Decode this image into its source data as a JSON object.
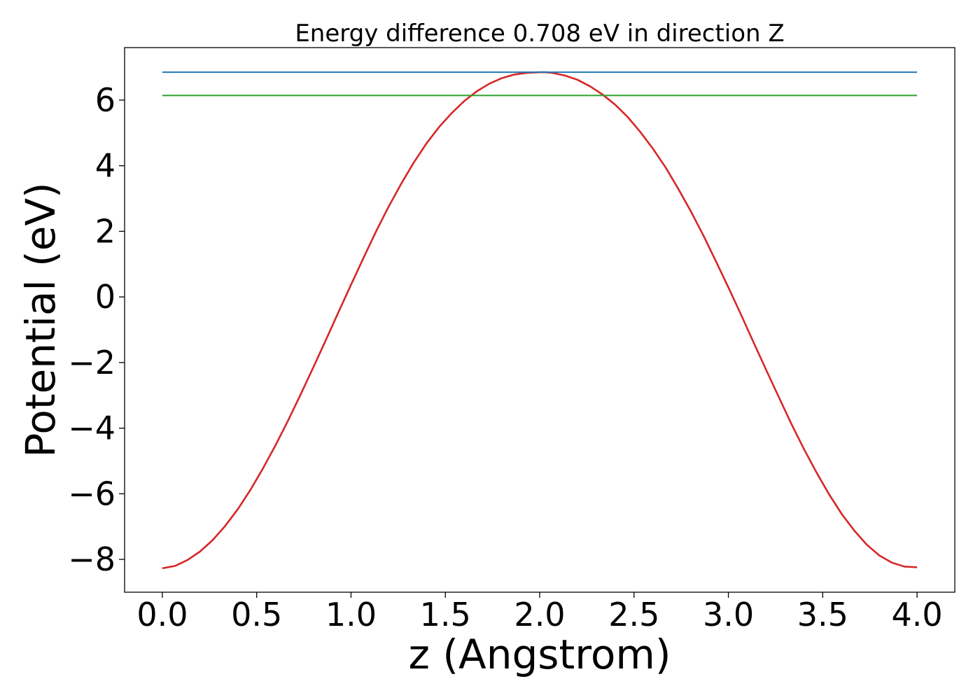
{
  "chart_data": {
    "type": "line",
    "title": "Energy difference 0.708 eV in direction Z",
    "xlabel": "z (Angstrom)",
    "ylabel": "Potential (eV)",
    "xlim": [
      -0.2,
      4.2
    ],
    "ylim": [
      -9.0,
      7.6
    ],
    "xticks": [
      0.0,
      0.5,
      1.0,
      1.5,
      2.0,
      2.5,
      3.0,
      3.5,
      4.0
    ],
    "xtick_labels": [
      "0.0",
      "0.5",
      "1.0",
      "1.5",
      "2.0",
      "2.5",
      "3.0",
      "3.5",
      "4.0"
    ],
    "yticks": [
      -8,
      -6,
      -4,
      -2,
      0,
      2,
      4,
      6
    ],
    "ytick_labels": [
      "−8",
      "−6",
      "−4",
      "−2",
      "0",
      "2",
      "4",
      "6"
    ],
    "grid": false,
    "legend": "none",
    "series": [
      {
        "color": "#d62728",
        "x": [
          0.0,
          0.067,
          0.133,
          0.2,
          0.267,
          0.333,
          0.4,
          0.467,
          0.533,
          0.6,
          0.667,
          0.733,
          0.8,
          0.867,
          0.933,
          1.0,
          1.067,
          1.133,
          1.2,
          1.267,
          1.333,
          1.4,
          1.467,
          1.533,
          1.6,
          1.667,
          1.733,
          1.8,
          1.867,
          1.933,
          2.0,
          2.033,
          2.067,
          2.133,
          2.2,
          2.267,
          2.333,
          2.4,
          2.467,
          2.533,
          2.6,
          2.667,
          2.733,
          2.8,
          2.867,
          2.933,
          3.0,
          3.067,
          3.133,
          3.2,
          3.267,
          3.333,
          3.4,
          3.467,
          3.533,
          3.6,
          3.667,
          3.733,
          3.8,
          3.867,
          3.933,
          4.0
        ],
        "y": [
          -8.27,
          -8.2,
          -8.02,
          -7.76,
          -7.41,
          -6.98,
          -6.47,
          -5.88,
          -5.23,
          -4.52,
          -3.76,
          -2.97,
          -2.15,
          -1.31,
          -0.47,
          0.37,
          1.2,
          2.0,
          2.76,
          3.46,
          4.1,
          4.68,
          5.18,
          5.6,
          5.97,
          6.27,
          6.5,
          6.67,
          6.78,
          6.83,
          6.85,
          6.85,
          6.83,
          6.75,
          6.62,
          6.42,
          6.17,
          5.86,
          5.48,
          5.03,
          4.52,
          3.95,
          3.31,
          2.62,
          1.88,
          1.1,
          0.29,
          -0.54,
          -1.38,
          -2.22,
          -3.05,
          -3.86,
          -4.63,
          -5.35,
          -6.01,
          -6.61,
          -7.12,
          -7.55,
          -7.88,
          -8.1,
          -8.22,
          -8.24
        ]
      },
      {
        "color": "#1f77b4",
        "x": [
          0.0,
          4.0
        ],
        "y": [
          6.85,
          6.85
        ]
      },
      {
        "color": "#2ca02c",
        "x": [
          0.0,
          4.0
        ],
        "y": [
          6.142,
          6.142
        ]
      }
    ]
  }
}
